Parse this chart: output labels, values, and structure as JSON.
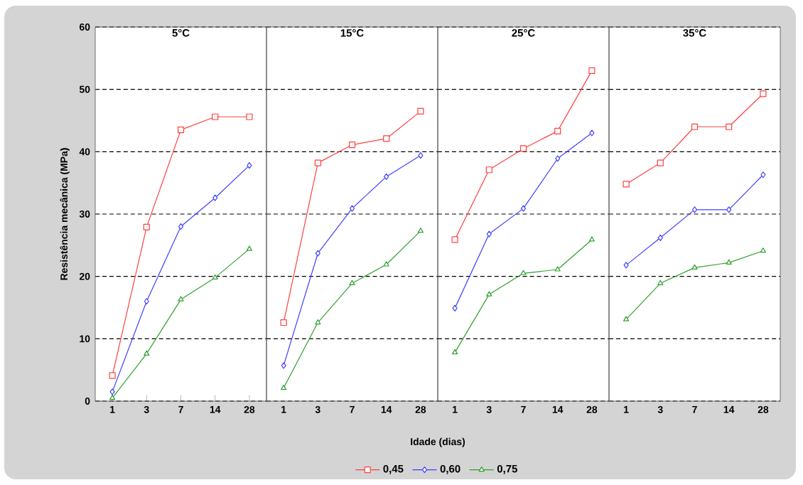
{
  "chart_data": [
    {
      "type": "line",
      "title": "5°C",
      "ylabel": "Resistência mecânica (MPa)",
      "categories": [
        "1",
        "3",
        "7",
        "14",
        "28"
      ],
      "ylim": [
        0,
        60
      ],
      "yticks": [
        0,
        10,
        20,
        30,
        40,
        50,
        60
      ],
      "grid": "y",
      "series": [
        {
          "color": "#ff4040",
          "marker": "square",
          "values": [
            4.1,
            27.9,
            43.5,
            45.6,
            45.6
          ]
        },
        {
          "color": "#4040ff",
          "marker": "diamond",
          "values": [
            1.5,
            16,
            28,
            32.6,
            37.8
          ]
        },
        {
          "color": "#30a030",
          "marker": "triangle",
          "values": [
            0.5,
            7.6,
            16.3,
            19.8,
            24.4
          ]
        }
      ]
    },
    {
      "type": "line",
      "title": "15°C",
      "xlabel": "Idade (dias)",
      "legend": "bottom",
      "tick_labels": "x",
      "categories": [
        "1",
        "3",
        "7",
        "14",
        "28"
      ],
      "ylim": [
        0,
        60
      ],
      "yticks": [
        0,
        10,
        20,
        30,
        40,
        50,
        60
      ],
      "grid": "y",
      "series": [
        {
          "name": "0,45",
          "color": "#ff4040",
          "marker": "square",
          "values": [
            12.6,
            38.2,
            41.1,
            42.1,
            46.5
          ]
        },
        {
          "name": "0,60",
          "color": "#4040ff",
          "marker": "diamond",
          "values": [
            5.7,
            23.7,
            30.9,
            36,
            39.4
          ]
        },
        {
          "name": "0,75",
          "color": "#30a030",
          "marker": "triangle",
          "values": [
            2.1,
            12.6,
            18.9,
            21.9,
            27.3
          ]
        }
      ]
    },
    {
      "type": "line",
      "title": "25°C",
      "tick_labels": "x",
      "categories": [
        "1",
        "3",
        "7",
        "14",
        "28"
      ],
      "ylim": [
        0,
        60
      ],
      "yticks": [
        0,
        10,
        20,
        30,
        40,
        50,
        60
      ],
      "grid": "y",
      "series": [
        {
          "color": "#ff4040",
          "marker": "square",
          "values": [
            25.9,
            37.1,
            40.5,
            43.3,
            53
          ]
        },
        {
          "color": "#4040ff",
          "marker": "diamond",
          "values": [
            14.9,
            26.8,
            30.9,
            38.9,
            43
          ]
        },
        {
          "color": "#30a030",
          "marker": "triangle",
          "values": [
            7.8,
            17.1,
            20.5,
            21.1,
            25.9
          ]
        }
      ]
    },
    {
      "type": "line",
      "title": "35°C",
      "tick_labels": "x",
      "categories": [
        "1",
        "3",
        "7",
        "14",
        "28"
      ],
      "ylim": [
        0,
        60
      ],
      "yticks": [
        0,
        10,
        20,
        30,
        40,
        50,
        60
      ],
      "grid": "y",
      "series": [
        {
          "color": "#ff4040",
          "marker": "square",
          "values": [
            34.8,
            38.2,
            44,
            44,
            49.3
          ]
        },
        {
          "color": "#4040ff",
          "marker": "diamond",
          "values": [
            21.8,
            26.2,
            30.7,
            30.7,
            36.3
          ]
        },
        {
          "color": "#30a030",
          "marker": "triangle",
          "values": [
            13.1,
            18.9,
            21.4,
            22.2,
            24.1
          ]
        }
      ]
    }
  ]
}
